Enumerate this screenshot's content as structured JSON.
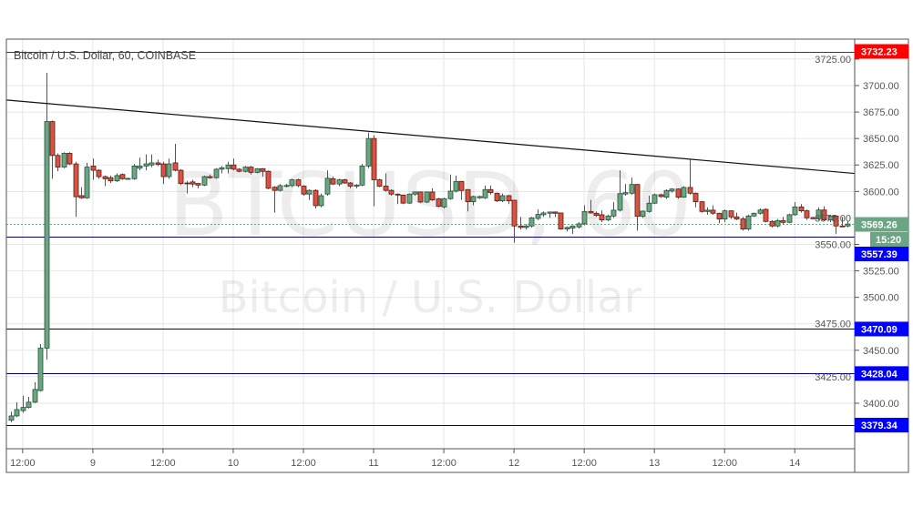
{
  "header": {
    "title": "Bitcoin / U.S. Dollar, 60, COINBASE"
  },
  "watermark": {
    "symbol": "BTCUSD, 60",
    "name": "Bitcoin / U.S. Dollar"
  },
  "colors": {
    "up": "#6ba583",
    "up_border": "#225437",
    "down": "#d75442",
    "down_border": "#5b1a13",
    "resistance": "#ff0000",
    "support": "#0000ff",
    "support_line": "#000080",
    "last_price": "#6ba583",
    "grid": "#e6e6e6"
  },
  "chart_data": {
    "type": "candlestick",
    "title": "Bitcoin / U.S. Dollar, 60, COINBASE",
    "interval": "60",
    "ylim": [
      3345,
      3745
    ],
    "grid": true,
    "y_ticks": [
      "3400.00",
      "3425.00",
      "3450.00",
      "3475.00",
      "3500.00",
      "3525.00",
      "3550.00",
      "3575.00",
      "3600.00",
      "3625.00",
      "3650.00",
      "3675.00",
      "3700.00",
      "3725.00"
    ],
    "x_ticks": [
      {
        "t": "8 12:00",
        "label": "12:00"
      },
      {
        "t": "9 00:00",
        "label": "9"
      },
      {
        "t": "9 12:00",
        "label": "12:00"
      },
      {
        "t": "10 00:00",
        "label": "10"
      },
      {
        "t": "10 12:00",
        "label": "12:00"
      },
      {
        "t": "11 00:00",
        "label": "11"
      },
      {
        "t": "11 12:00",
        "label": "12:00"
      },
      {
        "t": "12 00:00",
        "label": "12"
      },
      {
        "t": "12 12:00",
        "label": "12:00"
      },
      {
        "t": "13 00:00",
        "label": "13"
      },
      {
        "t": "13 12:00",
        "label": "12:00"
      },
      {
        "t": "14 00:00",
        "label": "14"
      }
    ],
    "columns": [
      "time",
      "open",
      "high",
      "low",
      "close"
    ],
    "candles": [
      [
        "8 10:00",
        3384,
        3392,
        3382,
        3388
      ],
      [
        "8 11:00",
        3388,
        3401,
        3387,
        3394
      ],
      [
        "8 12:00",
        3393,
        3407,
        3391,
        3396
      ],
      [
        "8 13:00",
        3396,
        3406,
        3395,
        3401
      ],
      [
        "8 14:00",
        3401,
        3420,
        3400,
        3413
      ],
      [
        "8 15:00",
        3412,
        3456,
        3411,
        3452
      ],
      [
        "8 16:00",
        3452,
        3712,
        3441,
        3666
      ],
      [
        "8 17:00",
        3666,
        3667,
        3612,
        3634
      ],
      [
        "8 18:00",
        3634,
        3636,
        3619,
        3623
      ],
      [
        "8 19:00",
        3623,
        3637,
        3622,
        3636
      ],
      [
        "8 20:00",
        3636,
        3637,
        3625,
        3626
      ],
      [
        "8 21:00",
        3626,
        3628,
        3576,
        3595
      ],
      [
        "8 22:00",
        3596,
        3604,
        3593,
        3594
      ],
      [
        "8 23:00",
        3594,
        3627,
        3593,
        3623
      ],
      [
        "9 00:00",
        3624,
        3631,
        3611,
        3620
      ],
      [
        "9 01:00",
        3620,
        3621,
        3612,
        3614
      ],
      [
        "9 02:00",
        3614,
        3615,
        3605,
        3612
      ],
      [
        "9 03:00",
        3613,
        3615,
        3608,
        3610
      ],
      [
        "9 04:00",
        3610,
        3617,
        3609,
        3615
      ],
      [
        "9 05:00",
        3616,
        3617,
        3611,
        3612
      ],
      [
        "9 06:00",
        3612,
        3613,
        3611,
        3612.3
      ],
      [
        "9 07:00",
        3612,
        3626,
        3611,
        3624
      ],
      [
        "9 08:00",
        3622,
        3632,
        3620,
        3624
      ],
      [
        "9 09:00",
        3624,
        3635,
        3620,
        3626
      ],
      [
        "9 10:00",
        3625,
        3635,
        3623,
        3627
      ],
      [
        "9 11:00",
        3627,
        3630,
        3624,
        3625.5
      ],
      [
        "9 12:00",
        3626,
        3628,
        3607,
        3614
      ],
      [
        "9 13:00",
        3614,
        3631,
        3612,
        3626
      ],
      [
        "9 14:00",
        3627,
        3645,
        3619,
        3620
      ],
      [
        "9 15:00",
        3620,
        3621,
        3606,
        3607.5
      ],
      [
        "9 16:00",
        3608,
        3610,
        3598,
        3607.8
      ],
      [
        "9 17:00",
        3609,
        3611,
        3604,
        3607
      ],
      [
        "9 18:00",
        3607.5,
        3608,
        3603,
        3606
      ],
      [
        "9 19:00",
        3606,
        3615,
        3605,
        3614
      ],
      [
        "9 20:00",
        3614,
        3616,
        3612,
        3613
      ],
      [
        "9 21:00",
        3613,
        3622,
        3612,
        3621
      ],
      [
        "9 22:00",
        3621,
        3624,
        3617,
        3622.4
      ],
      [
        "9 23:00",
        3621.5,
        3628,
        3617,
        3625
      ],
      [
        "10 00:00",
        3625,
        3631,
        3620,
        3621
      ],
      [
        "10 01:00",
        3621,
        3622,
        3618,
        3619
      ],
      [
        "10 02:00",
        3619,
        3624,
        3618,
        3623
      ],
      [
        "10 03:00",
        3623,
        3624,
        3616,
        3618
      ],
      [
        "10 04:00",
        3618,
        3622,
        3617,
        3621.5
      ],
      [
        "10 05:00",
        3621.5,
        3622,
        3614,
        3619
      ],
      [
        "10 06:00",
        3619,
        3620,
        3602,
        3603
      ],
      [
        "10 07:00",
        3604,
        3605,
        3580,
        3601
      ],
      [
        "10 08:00",
        3601,
        3607,
        3600,
        3605.5
      ],
      [
        "10 09:00",
        3605.5,
        3607,
        3604,
        3605.6
      ],
      [
        "10 10:00",
        3605.5,
        3612,
        3604,
        3611
      ],
      [
        "10 11:00",
        3611,
        3612,
        3604,
        3605.5
      ],
      [
        "10 12:00",
        3605,
        3606,
        3596,
        3597.5
      ],
      [
        "10 13:00",
        3597.5,
        3602,
        3592,
        3601
      ],
      [
        "10 14:00",
        3601,
        3602,
        3584,
        3586.6
      ],
      [
        "10 15:00",
        3586.6,
        3598,
        3585,
        3596
      ],
      [
        "10 16:00",
        3597.5,
        3620,
        3596,
        3612.4
      ],
      [
        "10 17:00",
        3612,
        3614,
        3606,
        3607
      ],
      [
        "10 18:00",
        3607,
        3612,
        3605,
        3611
      ],
      [
        "10 19:00",
        3611,
        3612,
        3607,
        3608
      ],
      [
        "10 20:00",
        3608,
        3609,
        3603,
        3605
      ],
      [
        "10 21:00",
        3605,
        3607,
        3603,
        3606
      ],
      [
        "10 22:00",
        3606,
        3626,
        3605,
        3624
      ],
      [
        "10 23:00",
        3624,
        3655.6,
        3622,
        3650
      ],
      [
        "11 00:00",
        3650,
        3653,
        3586,
        3611
      ],
      [
        "11 01:00",
        3611,
        3612,
        3604,
        3605
      ],
      [
        "11 02:00",
        3605,
        3617,
        3600,
        3601
      ],
      [
        "11 03:00",
        3601,
        3602,
        3596,
        3597.5
      ],
      [
        "11 04:00",
        3597.5,
        3598,
        3588,
        3596.6
      ],
      [
        "11 05:00",
        3596.6,
        3597,
        3588,
        3589
      ],
      [
        "11 06:00",
        3589,
        3598,
        3588,
        3597.5
      ],
      [
        "11 07:00",
        3597.5,
        3600,
        3596,
        3599.5
      ],
      [
        "11 08:00",
        3599.5,
        3600,
        3589,
        3590
      ],
      [
        "11 09:00",
        3590,
        3600,
        3589,
        3599.5
      ],
      [
        "11 10:00",
        3599.5,
        3603,
        3591,
        3592
      ],
      [
        "11 11:00",
        3593,
        3594,
        3585,
        3586
      ],
      [
        "11 12:00",
        3585.4,
        3594,
        3584,
        3593.2
      ],
      [
        "11 13:00",
        3593.2,
        3616,
        3592,
        3600.3
      ],
      [
        "11 14:00",
        3600.3,
        3615,
        3599,
        3609.5
      ],
      [
        "11 15:00",
        3609.5,
        3610,
        3592,
        3600.9
      ],
      [
        "11 16:00",
        3601.8,
        3602,
        3581,
        3590.3
      ],
      [
        "11 17:00",
        3590.3,
        3596,
        3587,
        3595.2
      ],
      [
        "11 18:00",
        3594,
        3596,
        3593,
        3595.2
      ],
      [
        "11 19:00",
        3594,
        3605.5,
        3593,
        3601.8
      ],
      [
        "11 20:00",
        3601.8,
        3605.5,
        3597,
        3598.9
      ],
      [
        "11 21:00",
        3598.3,
        3599,
        3590,
        3591.2
      ],
      [
        "11 22:00",
        3591.2,
        3598,
        3590,
        3596
      ],
      [
        "11 23:00",
        3596,
        3597,
        3588,
        3591.2
      ],
      [
        "12 00:00",
        3591.7,
        3592,
        3551.6,
        3567.4
      ],
      [
        "12 01:00",
        3567.4,
        3576,
        3564,
        3566
      ],
      [
        "12 02:00",
        3566,
        3569,
        3564,
        3567.4
      ],
      [
        "12 03:00",
        3567.4,
        3576,
        3566,
        3575.1
      ],
      [
        "12 04:00",
        3574.5,
        3583,
        3573,
        3578.3
      ],
      [
        "12 05:00",
        3578,
        3581,
        3576,
        3579.7
      ],
      [
        "12 06:00",
        3579.4,
        3581,
        3575,
        3580.6
      ],
      [
        "12 07:00",
        3580.6,
        3581,
        3576,
        3579.4
      ],
      [
        "12 08:00",
        3579.7,
        3580,
        3564,
        3564.5
      ],
      [
        "12 09:00",
        3564.5,
        3567,
        3562,
        3566
      ],
      [
        "12 10:00",
        3565.4,
        3568,
        3560,
        3567.4
      ],
      [
        "12 11:00",
        3566.5,
        3571,
        3565,
        3569.4
      ],
      [
        "12 12:00",
        3569.4,
        3587,
        3568,
        3581.1
      ],
      [
        "12 13:00",
        3581.1,
        3592,
        3579,
        3579.7
      ],
      [
        "12 14:00",
        3579.4,
        3581,
        3576,
        3577.4
      ],
      [
        "12 15:00",
        3578,
        3582,
        3571,
        3573.1
      ],
      [
        "12 16:00",
        3573.1,
        3578,
        3572,
        3576.8
      ],
      [
        "12 17:00",
        3576.8,
        3590,
        3575,
        3582.3
      ],
      [
        "12 18:00",
        3582.3,
        3620,
        3581,
        3598
      ],
      [
        "12 19:00",
        3597.5,
        3607,
        3596,
        3598.9
      ],
      [
        "12 20:00",
        3598.3,
        3613,
        3597,
        3606.6
      ],
      [
        "12 21:00",
        3606.6,
        3607,
        3563,
        3576.5
      ],
      [
        "12 22:00",
        3576.5,
        3582,
        3575,
        3581.4
      ],
      [
        "12 23:00",
        3581.1,
        3596,
        3580,
        3588.9
      ],
      [
        "13 00:00",
        3588.9,
        3598,
        3588,
        3596.9
      ],
      [
        "13 01:00",
        3596.9,
        3598,
        3594,
        3595.2
      ],
      [
        "13 02:00",
        3594.6,
        3602,
        3593,
        3600.9
      ],
      [
        "13 03:00",
        3600.3,
        3603,
        3599,
        3602.3
      ],
      [
        "13 04:00",
        3602.3,
        3603,
        3593,
        3594.6
      ],
      [
        "13 05:00",
        3594.6,
        3605,
        3594,
        3603.8
      ],
      [
        "13 06:00",
        3603.8,
        3630.4,
        3597,
        3598.3
      ],
      [
        "13 07:00",
        3598.3,
        3599,
        3585,
        3590.3
      ],
      [
        "13 08:00",
        3590.3,
        3591,
        3580,
        3581.1
      ],
      [
        "13 09:00",
        3581.1,
        3585,
        3578,
        3582.3
      ],
      [
        "13 10:00",
        3582.3,
        3587,
        3578,
        3579.4
      ],
      [
        "13 11:00",
        3579.4,
        3580,
        3570,
        3574
      ],
      [
        "13 12:00",
        3574,
        3583,
        3571,
        3581.7
      ],
      [
        "13 13:00",
        3581.7,
        3582,
        3574,
        3576
      ],
      [
        "13 14:00",
        3576,
        3580,
        3573,
        3574
      ],
      [
        "13 15:00",
        3574,
        3576,
        3563,
        3564.5
      ],
      [
        "13 16:00",
        3564.5,
        3578,
        3563,
        3576.8
      ],
      [
        "13 17:00",
        3576.8,
        3580,
        3576,
        3579.4
      ],
      [
        "13 18:00",
        3579.4,
        3584,
        3578,
        3582.5
      ],
      [
        "13 19:00",
        3583.1,
        3584,
        3571,
        3571.7
      ],
      [
        "13 20:00",
        3571.7,
        3573,
        3566,
        3567.4
      ],
      [
        "13 21:00",
        3567.4,
        3574,
        3566,
        3572.5
      ],
      [
        "13 22:00",
        3572.5,
        3576,
        3569,
        3570.8
      ],
      [
        "13 23:00",
        3570.8,
        3579,
        3570,
        3578
      ],
      [
        "14 00:00",
        3578,
        3590,
        3577,
        3585.4
      ],
      [
        "14 01:00",
        3585.4,
        3588,
        3580,
        3581.7
      ],
      [
        "14 02:00",
        3581.7,
        3583,
        3573,
        3575.1
      ],
      [
        "14 03:00",
        3575.4,
        3576,
        3574,
        3574.2
      ],
      [
        "14 04:00",
        3574.2,
        3585,
        3573,
        3582.5
      ],
      [
        "14 05:00",
        3582.5,
        3586,
        3572,
        3573.1
      ],
      [
        "14 06:00",
        3573.1,
        3578,
        3571,
        3576.8
      ],
      [
        "14 07:00",
        3576.8,
        3577,
        3560,
        3567.4
      ],
      [
        "14 08:00",
        3567.4,
        3576,
        3567,
        3567.2
      ],
      [
        "14 09:00",
        3567.4,
        3572,
        3566,
        3569.26
      ]
    ],
    "trendline": {
      "from": {
        "t": "8 10:00",
        "price": 3686
      },
      "to": {
        "t": "14 09:00",
        "price": 3617.6
      }
    },
    "horizontal_lines": [
      {
        "price": 3732.23,
        "label": "3732.23",
        "kind": "resistance"
      },
      {
        "price": 3557.39,
        "label": "3557.39",
        "kind": "support"
      },
      {
        "price": 3470.09,
        "label": "3470.09",
        "kind": "support"
      },
      {
        "price": 3428.04,
        "label": "3428.04",
        "kind": "support"
      },
      {
        "price": 3379.34,
        "label": "3379.34",
        "kind": "support"
      }
    ],
    "last_price": {
      "price": 3569.26,
      "label": "3569.26",
      "countdown": "15:20"
    }
  }
}
